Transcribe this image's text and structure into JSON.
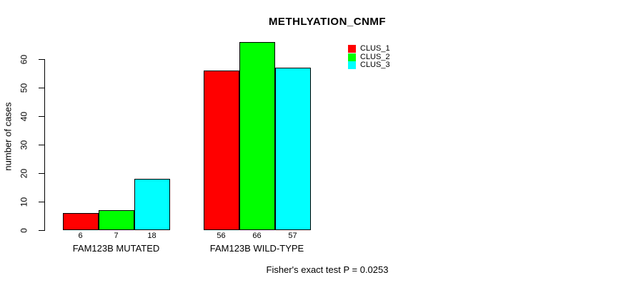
{
  "chart_data": {
    "type": "bar",
    "title": "METHLYATION_CNMF",
    "ylabel": "number of cases",
    "xlabel": "",
    "ylim": [
      0,
      60
    ],
    "yticks": [
      0,
      10,
      20,
      30,
      40,
      50,
      60
    ],
    "grid": false,
    "legend_position": "top-right",
    "categories": [
      "FAM123B MUTATED",
      "FAM123B WILD-TYPE"
    ],
    "series": [
      {
        "name": "CLUS_1",
        "color": "#ff0000",
        "values": [
          6,
          56
        ]
      },
      {
        "name": "CLUS_2",
        "color": "#00ff00",
        "values": [
          7,
          66
        ]
      },
      {
        "name": "CLUS_3",
        "color": "#00ffff",
        "values": [
          18,
          57
        ]
      }
    ],
    "bar_value_labels": [
      [
        "6",
        "7",
        "18"
      ],
      [
        "56",
        "66",
        "57"
      ]
    ],
    "caption": "Fisher's exact test P = 0.0253",
    "colors": {
      "bar_border": "#000000",
      "axis": "#000000",
      "text": "#000000",
      "background": "#ffffff"
    }
  }
}
